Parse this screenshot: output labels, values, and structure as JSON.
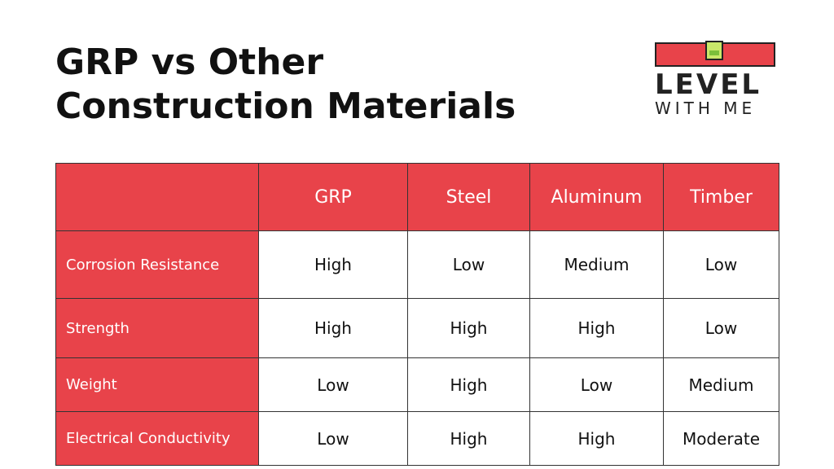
{
  "title": {
    "line1": "GRP vs Other",
    "line2": "Construction  Materials"
  },
  "logo": {
    "word1": "LEVEL",
    "word2": "WITH ME",
    "bar_color": "#e8434a",
    "bubble_color": "#c9e86a"
  },
  "colors": {
    "accent": "#e8434a",
    "border": "#333333",
    "text": "#111111"
  },
  "table": {
    "columns": [
      "GRP",
      "Steel",
      "Aluminum",
      "Timber"
    ],
    "rows": [
      {
        "label": "Corrosion Resistance",
        "values": [
          "High",
          "Low",
          "Medium",
          "Low"
        ]
      },
      {
        "label": "Strength",
        "values": [
          "High",
          "High",
          "High",
          "Low"
        ]
      },
      {
        "label": "Weight",
        "values": [
          "Low",
          "High",
          "Low",
          "Medium"
        ]
      },
      {
        "label": "Electrical Conductivity",
        "values": [
          "Low",
          "High",
          "High",
          "Moderate"
        ]
      }
    ]
  }
}
